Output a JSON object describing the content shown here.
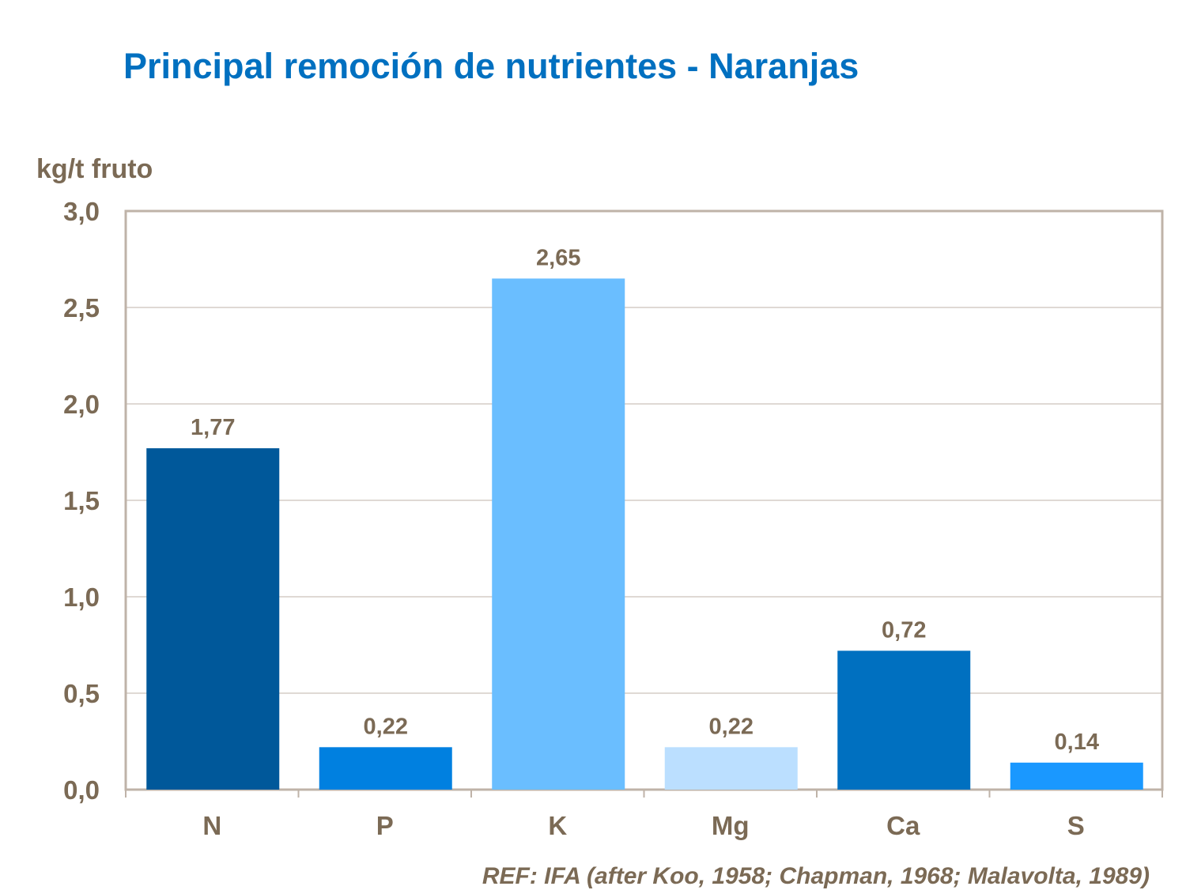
{
  "chart_data": {
    "type": "bar",
    "title": "Principal remoción de nutrientes - Naranjas",
    "ylabel": "kg/t fruto",
    "xlabel": "",
    "categories": [
      "N",
      "P",
      "K",
      "Mg",
      "Ca",
      "S"
    ],
    "values": [
      1.77,
      0.22,
      2.65,
      0.22,
      0.72,
      0.14
    ],
    "data_labels": [
      "1,77",
      "0,22",
      "2,65",
      "0,22",
      "0,72",
      "0,14"
    ],
    "bar_colors": [
      "#00589A",
      "#0080E0",
      "#6ABEFF",
      "#BBDFFF",
      "#0070C0",
      "#1A98FF"
    ],
    "ylim": [
      0,
      3
    ],
    "yticks": [
      0,
      0.5,
      1,
      1.5,
      2,
      2.5,
      3
    ],
    "ytick_labels": [
      "0,0",
      "0,5",
      "1,0",
      "1,5",
      "2,0",
      "2,5",
      "3,0"
    ],
    "grid": true,
    "legend": "none"
  },
  "footnote": "REF: IFA (after Koo, 1958; Chapman, 1968; Malavolta, 1989)",
  "colors": {
    "title": "#0070C0",
    "text": "#7B6A55",
    "axis": "#BFB3A8"
  }
}
